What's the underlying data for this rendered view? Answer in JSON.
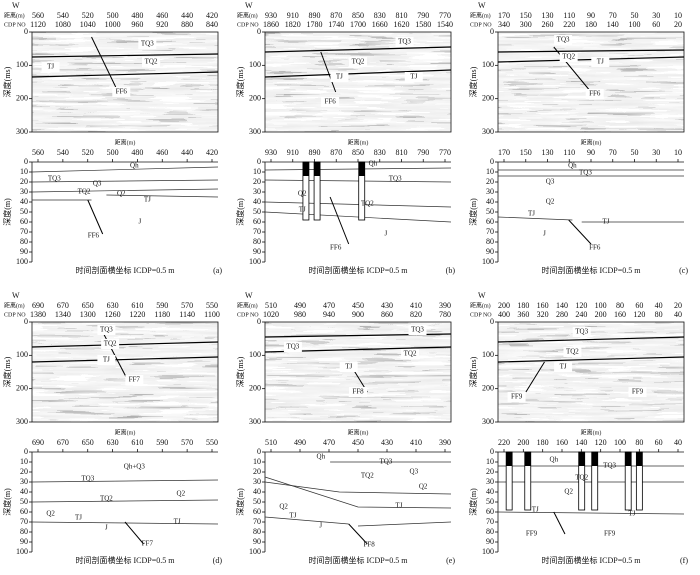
{
  "labels": {
    "w": "W",
    "distance": "距离(m)",
    "cdp": "CDP NO",
    "time_axis": "深度(ms)",
    "depth_axis": "深度(m)",
    "caption": "时间剖面横坐标 ICDP=0.5 m"
  },
  "time_ticks": [
    0,
    100,
    200,
    300
  ],
  "depth_ticks": [
    0,
    10,
    20,
    30,
    40,
    50,
    60,
    70,
    80,
    90,
    100
  ],
  "panels": [
    {
      "label": "(a)",
      "dist_top": [
        560,
        540,
        520,
        500,
        480,
        460,
        440,
        420
      ],
      "cdp": [
        1120,
        1080,
        1040,
        1000,
        960,
        920,
        880,
        840
      ],
      "dist_bottom": [
        560,
        540,
        520,
        500,
        480,
        460,
        440,
        420
      ],
      "seismic_labels": [
        "TQ3",
        "TQ2",
        "TJ",
        "FF6"
      ],
      "section_labels": [
        "Qh",
        "TQ3",
        "Q3",
        "TQ2",
        "Q2",
        "TJ",
        "J",
        "FF6"
      ]
    },
    {
      "label": "(b)",
      "dist_top": [
        930,
        910,
        890,
        870,
        850,
        830,
        810,
        790,
        770
      ],
      "cdp": [
        1860,
        1820,
        1780,
        1740,
        1700,
        1660,
        1620,
        1580,
        1540
      ],
      "dist_bottom": [
        930,
        910,
        890,
        870,
        850,
        830,
        810,
        790,
        770
      ],
      "seismic_labels": [
        "TQ3",
        "TQ2",
        "TJ",
        "TJ",
        "FF6"
      ],
      "section_labels": [
        "Qh",
        "TQ3",
        "Q2",
        "TQ2",
        "TJ",
        "J",
        "FF6"
      ]
    },
    {
      "label": "(c)",
      "dist_top": [
        170,
        150,
        130,
        110,
        90,
        70,
        50,
        30,
        10
      ],
      "cdp": [
        340,
        300,
        260,
        220,
        180,
        140,
        100,
        60,
        20
      ],
      "dist_bottom": [
        170,
        150,
        130,
        110,
        90,
        70,
        50,
        30,
        10
      ],
      "seismic_labels": [
        "TQ3",
        "TQ2",
        "TJ",
        "FF6"
      ],
      "section_labels": [
        "Qh",
        "TQ3",
        "Q3",
        "Q2",
        "TJ",
        "TJ",
        "J",
        "FF6"
      ]
    },
    {
      "label": "(d)",
      "dist_top": [
        690,
        670,
        650,
        630,
        610,
        590,
        570,
        550
      ],
      "cdp": [
        1380,
        1340,
        1300,
        1260,
        1220,
        1180,
        1140,
        1100
      ],
      "dist_bottom": [
        690,
        670,
        650,
        630,
        610,
        590,
        570,
        550
      ],
      "seismic_labels": [
        "TQ3",
        "TQ2",
        "TJ",
        "FF7"
      ],
      "section_labels": [
        "Qh+Q3",
        "TQ3",
        "Q2",
        "TQ2",
        "Q2",
        "TJ",
        "J",
        "TJ",
        "FF7"
      ]
    },
    {
      "label": "(e)",
      "dist_top": [
        510,
        490,
        470,
        450,
        430,
        410,
        390
      ],
      "cdp": [
        1020,
        980,
        940,
        900,
        860,
        820,
        780
      ],
      "dist_bottom": [
        510,
        490,
        470,
        450,
        430,
        410,
        390
      ],
      "seismic_labels": [
        "TQ3",
        "TQ3",
        "TQ2",
        "TJ",
        "FF8"
      ],
      "section_labels": [
        "Qh",
        "TQ3",
        "Q3",
        "TQ2",
        "Q2",
        "Q2",
        "TJ",
        "TJ",
        "J",
        "FF8"
      ]
    },
    {
      "label": "(f)",
      "dist_top": [
        200,
        180,
        160,
        140,
        120,
        100,
        80,
        60,
        40,
        20
      ],
      "cdp": [
        400,
        360,
        320,
        280,
        240,
        200,
        160,
        120,
        80,
        40
      ],
      "dist_bottom": [
        220,
        200,
        180,
        160,
        140,
        120,
        100,
        80,
        60,
        40
      ],
      "seismic_labels": [
        "TQ3",
        "TQ2",
        "TJ",
        "FF9",
        "FF9"
      ],
      "section_labels": [
        "Qh",
        "TQ3",
        "TQ2",
        "Q2",
        "TJ",
        "TJ",
        "FF9",
        "FF9"
      ]
    }
  ]
}
